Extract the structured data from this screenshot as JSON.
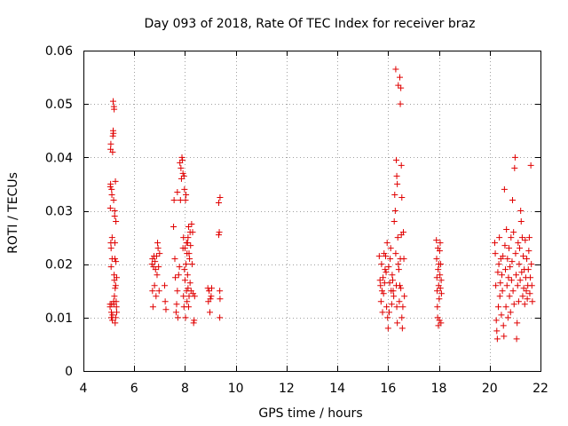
{
  "chart_data": {
    "type": "scatter",
    "title": "Day 093 of 2018, Rate Of TEC Index for receiver braz",
    "xlabel": "GPS time / hours",
    "ylabel": "ROTI / TECUs",
    "xlim": [
      4,
      22
    ],
    "ylim": [
      0,
      0.06
    ],
    "xticks": [
      4,
      6,
      8,
      10,
      12,
      14,
      16,
      18,
      20,
      22
    ],
    "yticks": [
      0,
      0.01,
      0.02,
      0.03,
      0.04,
      0.05,
      0.06
    ],
    "xtick_labels": [
      "4",
      "6",
      "8",
      "10",
      "12",
      "14",
      "16",
      "18",
      "20",
      "22"
    ],
    "ytick_labels": [
      "0",
      "0.01",
      "0.02",
      "0.03",
      "0.04",
      "0.05",
      "0.06"
    ],
    "grid": true,
    "marker": "+",
    "color": "#e00000",
    "series": [
      {
        "name": "ROTI",
        "points": [
          [
            5.05,
            0.0125
          ],
          [
            5.05,
            0.012
          ],
          [
            5.06,
            0.0305
          ],
          [
            5.06,
            0.0345
          ],
          [
            5.07,
            0.035
          ],
          [
            5.07,
            0.0415
          ],
          [
            5.08,
            0.0425
          ],
          [
            5.08,
            0.024
          ],
          [
            5.09,
            0.023
          ],
          [
            5.09,
            0.0195
          ],
          [
            5.1,
            0.011
          ],
          [
            5.1,
            0.01
          ],
          [
            5.11,
            0.0125
          ],
          [
            5.11,
            0.034
          ],
          [
            5.12,
            0.033
          ],
          [
            5.13,
            0.021
          ],
          [
            5.13,
            0.025
          ],
          [
            5.14,
            0.0095
          ],
          [
            5.15,
            0.0105
          ],
          [
            5.15,
            0.041
          ],
          [
            5.16,
            0.044
          ],
          [
            5.17,
            0.045
          ],
          [
            5.17,
            0.0505
          ],
          [
            5.18,
            0.0445
          ],
          [
            5.19,
            0.032
          ],
          [
            5.19,
            0.013
          ],
          [
            5.2,
            0.0495
          ],
          [
            5.2,
            0.0125
          ],
          [
            5.21,
            0.049
          ],
          [
            5.21,
            0.018
          ],
          [
            5.22,
            0.017
          ],
          [
            5.22,
            0.014
          ],
          [
            5.23,
            0.029
          ],
          [
            5.23,
            0.03
          ],
          [
            5.24,
            0.024
          ],
          [
            5.24,
            0.021
          ],
          [
            5.25,
            0.0155
          ],
          [
            5.25,
            0.009
          ],
          [
            5.26,
            0.0355
          ],
          [
            5.27,
            0.016
          ],
          [
            5.27,
            0.01
          ],
          [
            5.28,
            0.028
          ],
          [
            5.28,
            0.0205
          ],
          [
            5.29,
            0.013
          ],
          [
            5.3,
            0.012
          ],
          [
            5.31,
            0.0175
          ],
          [
            5.31,
            0.011
          ],
          [
            6.7,
            0.02
          ],
          [
            6.72,
            0.021
          ],
          [
            6.72,
            0.015
          ],
          [
            6.74,
            0.012
          ],
          [
            6.76,
            0.0195
          ],
          [
            6.78,
            0.0215
          ],
          [
            6.8,
            0.016
          ],
          [
            6.82,
            0.0205
          ],
          [
            6.84,
            0.019
          ],
          [
            6.86,
            0.014
          ],
          [
            6.88,
            0.0215
          ],
          [
            6.9,
            0.018
          ],
          [
            6.92,
            0.024
          ],
          [
            6.94,
            0.023
          ],
          [
            6.96,
            0.0195
          ],
          [
            6.98,
            0.015
          ],
          [
            7.0,
            0.022
          ],
          [
            7.2,
            0.016
          ],
          [
            7.22,
            0.013
          ],
          [
            7.25,
            0.0115
          ],
          [
            7.55,
            0.027
          ],
          [
            7.57,
            0.032
          ],
          [
            7.6,
            0.021
          ],
          [
            7.62,
            0.0175
          ],
          [
            7.65,
            0.011
          ],
          [
            7.67,
            0.0125
          ],
          [
            7.7,
            0.0335
          ],
          [
            7.7,
            0.015
          ],
          [
            7.72,
            0.01
          ],
          [
            7.75,
            0.018
          ],
          [
            7.78,
            0.0195
          ],
          [
            7.8,
            0.039
          ],
          [
            7.82,
            0.032
          ],
          [
            7.84,
            0.038
          ],
          [
            7.86,
            0.036
          ],
          [
            7.88,
            0.04
          ],
          [
            7.9,
            0.0395
          ],
          [
            7.92,
            0.037
          ],
          [
            7.92,
            0.023
          ],
          [
            7.94,
            0.025
          ],
          [
            7.94,
            0.014
          ],
          [
            7.96,
            0.0365
          ],
          [
            7.96,
            0.012
          ],
          [
            7.98,
            0.034
          ],
          [
            7.98,
            0.019
          ],
          [
            8.0,
            0.023
          ],
          [
            8.0,
            0.017
          ],
          [
            8.02,
            0.032
          ],
          [
            8.02,
            0.01
          ],
          [
            8.04,
            0.033
          ],
          [
            8.04,
            0.02
          ],
          [
            8.06,
            0.024
          ],
          [
            8.06,
            0.015
          ],
          [
            8.08,
            0.022
          ],
          [
            8.08,
            0.013
          ],
          [
            8.1,
            0.024
          ],
          [
            8.1,
            0.018
          ],
          [
            8.12,
            0.025
          ],
          [
            8.12,
            0.0155
          ],
          [
            8.14,
            0.027
          ],
          [
            8.14,
            0.012
          ],
          [
            8.16,
            0.022
          ],
          [
            8.16,
            0.014
          ],
          [
            8.18,
            0.021
          ],
          [
            8.2,
            0.026
          ],
          [
            8.2,
            0.0165
          ],
          [
            8.22,
            0.0235
          ],
          [
            8.24,
            0.015
          ],
          [
            8.26,
            0.0275
          ],
          [
            8.28,
            0.02
          ],
          [
            8.3,
            0.026
          ],
          [
            8.32,
            0.0145
          ],
          [
            8.34,
            0.009
          ],
          [
            8.36,
            0.0095
          ],
          [
            8.38,
            0.014
          ],
          [
            8.9,
            0.0155
          ],
          [
            8.92,
            0.013
          ],
          [
            8.95,
            0.015
          ],
          [
            8.98,
            0.011
          ],
          [
            9.0,
            0.0135
          ],
          [
            9.03,
            0.014
          ],
          [
            9.05,
            0.0155
          ],
          [
            9.33,
            0.0315
          ],
          [
            9.33,
            0.0255
          ],
          [
            9.35,
            0.026
          ],
          [
            9.37,
            0.015
          ],
          [
            9.37,
            0.01
          ],
          [
            9.38,
            0.0325
          ],
          [
            9.38,
            0.0135
          ],
          [
            15.65,
            0.0215
          ],
          [
            15.68,
            0.017
          ],
          [
            15.7,
            0.016
          ],
          [
            15.72,
            0.013
          ],
          [
            15.74,
            0.02
          ],
          [
            15.76,
            0.015
          ],
          [
            15.78,
            0.011
          ],
          [
            15.8,
            0.0175
          ],
          [
            15.82,
            0.0145
          ],
          [
            15.84,
            0.022
          ],
          [
            15.86,
            0.0165
          ],
          [
            15.88,
            0.019
          ],
          [
            15.9,
            0.0215
          ],
          [
            15.92,
            0.0185
          ],
          [
            15.94,
            0.012
          ],
          [
            15.96,
            0.024
          ],
          [
            15.98,
            0.01
          ],
          [
            16.0,
            0.008
          ],
          [
            16.02,
            0.0195
          ],
          [
            16.04,
            0.011
          ],
          [
            16.06,
            0.0165
          ],
          [
            16.08,
            0.021
          ],
          [
            16.1,
            0.023
          ],
          [
            16.12,
            0.015
          ],
          [
            16.14,
            0.0125
          ],
          [
            16.16,
            0.018
          ],
          [
            16.18,
            0.017
          ],
          [
            16.2,
            0.015
          ],
          [
            16.22,
            0.014
          ],
          [
            16.24,
            0.028
          ],
          [
            16.26,
            0.033
          ],
          [
            16.28,
            0.03
          ],
          [
            16.3,
            0.0565
          ],
          [
            16.3,
            0.022
          ],
          [
            16.32,
            0.0395
          ],
          [
            16.32,
            0.016
          ],
          [
            16.34,
            0.0365
          ],
          [
            16.34,
            0.012
          ],
          [
            16.36,
            0.035
          ],
          [
            16.36,
            0.009
          ],
          [
            16.38,
            0.025
          ],
          [
            16.4,
            0.0535
          ],
          [
            16.4,
            0.02
          ],
          [
            16.42,
            0.019
          ],
          [
            16.44,
            0.013
          ],
          [
            16.46,
            0.055
          ],
          [
            16.46,
            0.016
          ],
          [
            16.48,
            0.05
          ],
          [
            16.48,
            0.021
          ],
          [
            16.5,
            0.053
          ],
          [
            16.5,
            0.0155
          ],
          [
            16.52,
            0.0385
          ],
          [
            16.52,
            0.0255
          ],
          [
            16.54,
            0.0325
          ],
          [
            16.54,
            0.01
          ],
          [
            16.56,
            0.008
          ],
          [
            16.58,
            0.012
          ],
          [
            16.6,
            0.026
          ],
          [
            16.62,
            0.021
          ],
          [
            16.64,
            0.014
          ],
          [
            17.9,
            0.0245
          ],
          [
            17.91,
            0.021
          ],
          [
            17.92,
            0.0175
          ],
          [
            17.93,
            0.015
          ],
          [
            17.94,
            0.012
          ],
          [
            17.95,
            0.01
          ],
          [
            17.96,
            0.023
          ],
          [
            17.97,
            0.019
          ],
          [
            17.98,
            0.0085
          ],
          [
            17.99,
            0.016
          ],
          [
            18.0,
            0.02
          ],
          [
            18.01,
            0.0135
          ],
          [
            18.02,
            0.0095
          ],
          [
            18.03,
            0.0225
          ],
          [
            18.04,
            0.018
          ],
          [
            18.05,
            0.024
          ],
          [
            18.06,
            0.0155
          ],
          [
            18.07,
            0.02
          ],
          [
            18.08,
            0.009
          ],
          [
            18.09,
            0.017
          ],
          [
            18.1,
            0.0145
          ],
          [
            20.2,
            0.024
          ],
          [
            20.22,
            0.022
          ],
          [
            20.24,
            0.016
          ],
          [
            20.26,
            0.0095
          ],
          [
            20.28,
            0.0075
          ],
          [
            20.3,
            0.006
          ],
          [
            20.32,
            0.0185
          ],
          [
            20.34,
            0.012
          ],
          [
            20.36,
            0.02
          ],
          [
            20.38,
            0.025
          ],
          [
            20.4,
            0.014
          ],
          [
            20.42,
            0.0165
          ],
          [
            20.44,
            0.021
          ],
          [
            20.46,
            0.0105
          ],
          [
            20.48,
            0.018
          ],
          [
            20.5,
            0.015
          ],
          [
            20.52,
            0.0215
          ],
          [
            20.54,
            0.0085
          ],
          [
            20.56,
            0.0065
          ],
          [
            20.58,
            0.034
          ],
          [
            20.6,
            0.0235
          ],
          [
            20.62,
            0.019
          ],
          [
            20.64,
            0.012
          ],
          [
            20.66,
            0.0265
          ],
          [
            20.68,
            0.016
          ],
          [
            20.7,
            0.021
          ],
          [
            20.72,
            0.01
          ],
          [
            20.74,
            0.0175
          ],
          [
            20.76,
            0.023
          ],
          [
            20.78,
            0.014
          ],
          [
            20.8,
            0.0195
          ],
          [
            20.82,
            0.011
          ],
          [
            20.84,
            0.025
          ],
          [
            20.86,
            0.017
          ],
          [
            20.88,
            0.0205
          ],
          [
            20.9,
            0.032
          ],
          [
            20.92,
            0.015
          ],
          [
            20.94,
            0.026
          ],
          [
            20.96,
            0.0125
          ],
          [
            20.98,
            0.038
          ],
          [
            21.0,
            0.04
          ],
          [
            21.02,
            0.022
          ],
          [
            21.04,
            0.018
          ],
          [
            21.06,
            0.006
          ],
          [
            21.08,
            0.009
          ],
          [
            21.1,
            0.016
          ],
          [
            21.12,
            0.024
          ],
          [
            21.14,
            0.013
          ],
          [
            21.16,
            0.02
          ],
          [
            21.18,
            0.023
          ],
          [
            21.2,
            0.017
          ],
          [
            21.22,
            0.03
          ],
          [
            21.24,
            0.028
          ],
          [
            21.26,
            0.0185
          ],
          [
            21.28,
            0.025
          ],
          [
            21.3,
            0.014
          ],
          [
            21.32,
            0.0215
          ],
          [
            21.34,
            0.0155
          ],
          [
            21.36,
            0.019
          ],
          [
            21.38,
            0.0125
          ],
          [
            21.4,
            0.0245
          ],
          [
            21.42,
            0.0175
          ],
          [
            21.44,
            0.015
          ],
          [
            21.46,
            0.021
          ],
          [
            21.48,
            0.0135
          ],
          [
            21.5,
            0.016
          ],
          [
            21.52,
            0.019
          ],
          [
            21.54,
            0.0225
          ],
          [
            21.56,
            0.025
          ],
          [
            21.58,
            0.0145
          ],
          [
            21.6,
            0.0175
          ],
          [
            21.62,
            0.0385
          ],
          [
            21.64,
            0.02
          ],
          [
            21.66,
            0.016
          ],
          [
            21.68,
            0.013
          ]
        ]
      }
    ]
  }
}
